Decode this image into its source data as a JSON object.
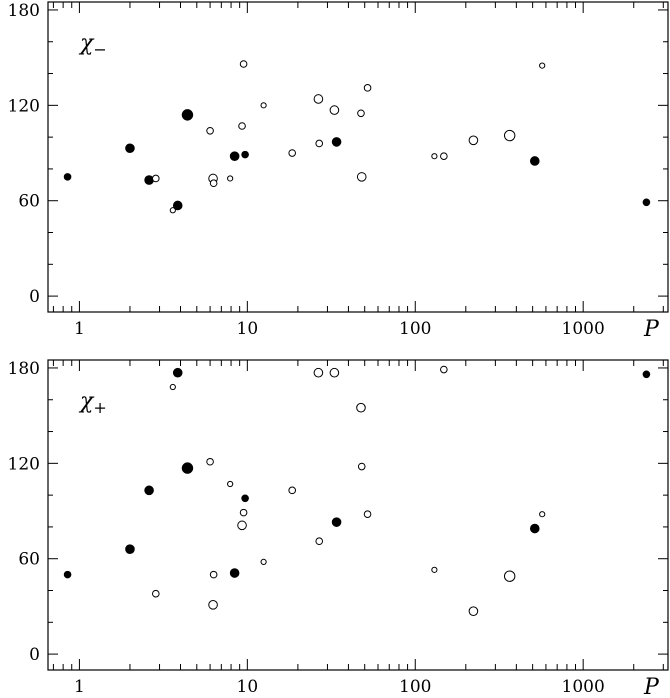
{
  "chart_data": [
    {
      "type": "scatter",
      "panel_label": {
        "symbol": "χ",
        "subscript": "−"
      },
      "xlabel": "P",
      "x_scale": "log",
      "xlim": [
        0.65,
        3200
      ],
      "ylim": [
        -10,
        185
      ],
      "x_ticks": [
        1,
        10,
        100,
        1000
      ],
      "x_tick_labels": [
        "1",
        "10",
        "100",
        "1000"
      ],
      "y_ticks": [
        0,
        60,
        120,
        180
      ],
      "y_tick_labels": [
        "0",
        "60",
        "120",
        "180"
      ],
      "points": [
        {
          "x": 0.85,
          "y": 75,
          "filled": true,
          "size": "small"
        },
        {
          "x": 2.0,
          "y": 93,
          "filled": true,
          "size": "medium"
        },
        {
          "x": 2.6,
          "y": 73,
          "filled": true,
          "size": "medium"
        },
        {
          "x": 2.85,
          "y": 74,
          "filled": false,
          "size": "small"
        },
        {
          "x": 3.6,
          "y": 54,
          "filled": false,
          "size": "tiny"
        },
        {
          "x": 3.85,
          "y": 57,
          "filled": true,
          "size": "medium"
        },
        {
          "x": 4.4,
          "y": 114,
          "filled": true,
          "size": "large"
        },
        {
          "x": 6.0,
          "y": 104,
          "filled": false,
          "size": "small"
        },
        {
          "x": 6.25,
          "y": 74,
          "filled": false,
          "size": "medium"
        },
        {
          "x": 6.3,
          "y": 71,
          "filled": false,
          "size": "small"
        },
        {
          "x": 7.9,
          "y": 74,
          "filled": false,
          "size": "tiny"
        },
        {
          "x": 8.4,
          "y": 88,
          "filled": true,
          "size": "medium"
        },
        {
          "x": 9.3,
          "y": 107,
          "filled": false,
          "size": "small"
        },
        {
          "x": 9.5,
          "y": 146,
          "filled": false,
          "size": "small"
        },
        {
          "x": 9.7,
          "y": 89,
          "filled": true,
          "size": "small"
        },
        {
          "x": 12.5,
          "y": 120,
          "filled": false,
          "size": "tiny"
        },
        {
          "x": 18.5,
          "y": 90,
          "filled": false,
          "size": "small"
        },
        {
          "x": 26.5,
          "y": 124,
          "filled": false,
          "size": "medium"
        },
        {
          "x": 26.8,
          "y": 96,
          "filled": false,
          "size": "small"
        },
        {
          "x": 33.0,
          "y": 117,
          "filled": false,
          "size": "medium"
        },
        {
          "x": 34.0,
          "y": 97,
          "filled": true,
          "size": "medium"
        },
        {
          "x": 47.5,
          "y": 115,
          "filled": false,
          "size": "small"
        },
        {
          "x": 48.0,
          "y": 75,
          "filled": false,
          "size": "medium"
        },
        {
          "x": 52.0,
          "y": 131,
          "filled": false,
          "size": "small"
        },
        {
          "x": 130.0,
          "y": 88,
          "filled": false,
          "size": "tiny"
        },
        {
          "x": 148.0,
          "y": 88,
          "filled": false,
          "size": "small"
        },
        {
          "x": 222.0,
          "y": 98,
          "filled": false,
          "size": "medium"
        },
        {
          "x": 365.0,
          "y": 101,
          "filled": false,
          "size": "large"
        },
        {
          "x": 515.0,
          "y": 85,
          "filled": true,
          "size": "medium"
        },
        {
          "x": 570.0,
          "y": 145,
          "filled": false,
          "size": "tiny"
        },
        {
          "x": 2380.0,
          "y": 59,
          "filled": true,
          "size": "small"
        }
      ]
    },
    {
      "type": "scatter",
      "panel_label": {
        "symbol": "χ",
        "subscript": "+"
      },
      "xlabel": "P",
      "x_scale": "log",
      "xlim": [
        0.65,
        3200
      ],
      "ylim": [
        -10,
        185
      ],
      "x_ticks": [
        1,
        10,
        100,
        1000
      ],
      "x_tick_labels": [
        "1",
        "10",
        "100",
        "1000"
      ],
      "y_ticks": [
        0,
        60,
        120,
        180
      ],
      "y_tick_labels": [
        "0",
        "60",
        "120",
        "180"
      ],
      "points": [
        {
          "x": 0.85,
          "y": 50,
          "filled": true,
          "size": "small"
        },
        {
          "x": 2.0,
          "y": 66,
          "filled": true,
          "size": "medium"
        },
        {
          "x": 2.6,
          "y": 103,
          "filled": true,
          "size": "medium"
        },
        {
          "x": 2.85,
          "y": 38,
          "filled": false,
          "size": "small"
        },
        {
          "x": 3.6,
          "y": 168,
          "filled": false,
          "size": "tiny"
        },
        {
          "x": 3.85,
          "y": 177,
          "filled": true,
          "size": "medium"
        },
        {
          "x": 4.4,
          "y": 117,
          "filled": true,
          "size": "large"
        },
        {
          "x": 6.0,
          "y": 121,
          "filled": false,
          "size": "small"
        },
        {
          "x": 6.25,
          "y": 31,
          "filled": false,
          "size": "medium"
        },
        {
          "x": 6.3,
          "y": 50,
          "filled": false,
          "size": "small"
        },
        {
          "x": 7.9,
          "y": 107,
          "filled": false,
          "size": "tiny"
        },
        {
          "x": 8.4,
          "y": 51,
          "filled": true,
          "size": "medium"
        },
        {
          "x": 9.3,
          "y": 81,
          "filled": false,
          "size": "medium"
        },
        {
          "x": 9.5,
          "y": 89,
          "filled": false,
          "size": "small"
        },
        {
          "x": 9.7,
          "y": 98,
          "filled": true,
          "size": "small"
        },
        {
          "x": 12.5,
          "y": 58,
          "filled": false,
          "size": "tiny"
        },
        {
          "x": 18.5,
          "y": 103,
          "filled": false,
          "size": "small"
        },
        {
          "x": 26.5,
          "y": 177,
          "filled": false,
          "size": "medium"
        },
        {
          "x": 26.8,
          "y": 71,
          "filled": false,
          "size": "small"
        },
        {
          "x": 33.0,
          "y": 177,
          "filled": false,
          "size": "medium"
        },
        {
          "x": 34.0,
          "y": 83,
          "filled": true,
          "size": "medium"
        },
        {
          "x": 47.5,
          "y": 155,
          "filled": false,
          "size": "medium"
        },
        {
          "x": 48.0,
          "y": 118,
          "filled": false,
          "size": "small"
        },
        {
          "x": 52.0,
          "y": 88,
          "filled": false,
          "size": "small"
        },
        {
          "x": 130.0,
          "y": 53,
          "filled": false,
          "size": "tiny"
        },
        {
          "x": 148.0,
          "y": 179,
          "filled": false,
          "size": "small"
        },
        {
          "x": 222.0,
          "y": 27,
          "filled": false,
          "size": "medium"
        },
        {
          "x": 365.0,
          "y": 49,
          "filled": false,
          "size": "large"
        },
        {
          "x": 515.0,
          "y": 79,
          "filled": true,
          "size": "medium"
        },
        {
          "x": 570.0,
          "y": 88,
          "filled": false,
          "size": "tiny"
        },
        {
          "x": 2380.0,
          "y": 176,
          "filled": true,
          "size": "small"
        }
      ]
    }
  ]
}
